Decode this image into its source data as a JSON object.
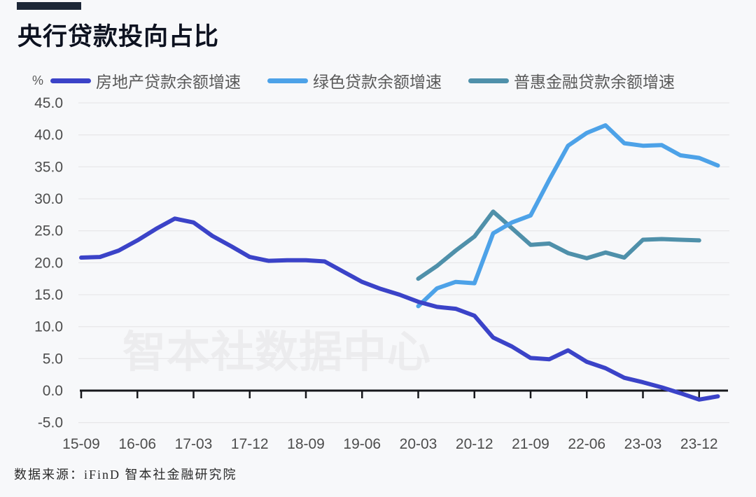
{
  "header": {
    "title": "央行贷款投向占比"
  },
  "chart": {
    "unit": "%",
    "watermark": "智本社数据中心"
  },
  "chart_data": {
    "type": "line",
    "title": "央行贷款投向占比",
    "unit": "%",
    "ylim": [
      -5,
      45
    ],
    "grid": true,
    "legend_position": "top",
    "y_tick_values": [
      45,
      40,
      35,
      30,
      25,
      20,
      15,
      10,
      5,
      0,
      -5
    ],
    "x_tick_labels": [
      "15-09",
      "16-06",
      "17-03",
      "17-12",
      "18-09",
      "19-06",
      "20-03",
      "20-12",
      "21-09",
      "22-06",
      "23-03",
      "23-12"
    ],
    "quarters": [
      "15-09",
      "15-12",
      "16-03",
      "16-06",
      "16-09",
      "16-12",
      "17-03",
      "17-06",
      "17-09",
      "17-12",
      "18-03",
      "18-06",
      "18-09",
      "18-12",
      "19-03",
      "19-06",
      "19-09",
      "19-12",
      "20-03",
      "20-06",
      "20-09",
      "20-12",
      "21-03",
      "21-06",
      "21-09",
      "21-12",
      "22-03",
      "22-06",
      "22-09",
      "22-12",
      "23-03",
      "23-06",
      "23-09",
      "23-12",
      "24-03"
    ],
    "series": [
      {
        "name": "房地产贷款余额增速",
        "color": "#3b43c8",
        "start": "15-09",
        "values": [
          20.8,
          20.9,
          21.9,
          23.5,
          25.3,
          26.9,
          26.3,
          24.2,
          22.6,
          20.9,
          20.3,
          20.4,
          20.4,
          20.2,
          18.6,
          17.0,
          15.9,
          15.0,
          13.9,
          13.1,
          12.8,
          11.7,
          8.3,
          6.9,
          5.1,
          4.9,
          6.3,
          4.5,
          3.5,
          2.0,
          1.3,
          0.5,
          -0.4,
          -1.4,
          -0.9
        ]
      },
      {
        "name": "绿色贷款余额增速",
        "color": "#4da2e8",
        "start": "20-03",
        "values": [
          13.2,
          16.0,
          17.0,
          16.8,
          24.6,
          26.3,
          27.4,
          33.0,
          38.3,
          40.3,
          41.5,
          38.7,
          38.3,
          38.4,
          36.8,
          36.4,
          35.2
        ]
      },
      {
        "name": "普惠金融贷款余额增速",
        "color": "#4f90aa",
        "start": "20-03",
        "values": [
          17.5,
          19.5,
          21.9,
          24.1,
          28.0,
          25.4,
          22.8,
          23.0,
          21.5,
          20.7,
          21.6,
          20.8,
          23.6,
          23.7,
          23.6,
          23.5
        ]
      }
    ],
    "colors": {
      "background": "#f7f8fa",
      "grid": "#e8e8ea",
      "axis": "#17181c",
      "tick_text": "#4d4d4d",
      "legend_text": "#595959"
    }
  },
  "footer": {
    "source": "数据来源：iFinD 智本社金融研究院"
  }
}
